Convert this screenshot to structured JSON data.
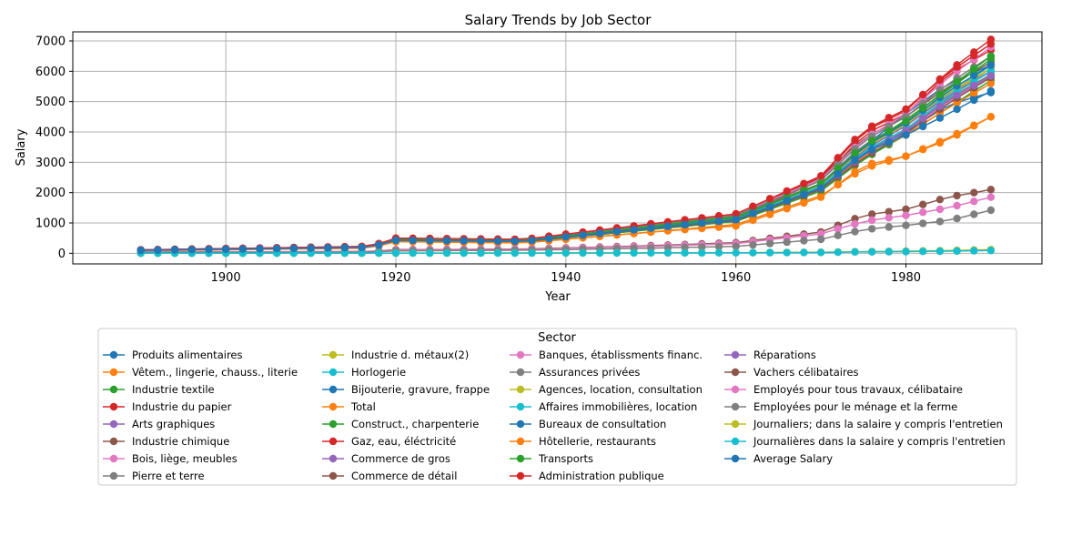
{
  "chart_data": {
    "type": "line",
    "title": "Salary Trends by Job Sector",
    "xlabel": "Year",
    "ylabel": "Salary",
    "xlim": [
      1882,
      1996
    ],
    "ylim": [
      -350,
      7300
    ],
    "xticks": [
      1900,
      1920,
      1940,
      1960,
      1980
    ],
    "yticks": [
      0,
      1000,
      2000,
      3000,
      4000,
      5000,
      6000,
      7000
    ],
    "grid": true,
    "legend": {
      "title": "Sector",
      "placement": "bottom-center",
      "columns": 4
    },
    "x_range": [
      1890,
      1990
    ],
    "series": [
      {
        "name": "Produits alimentaires",
        "color": "#1f77b4",
        "values": {
          "1890": 100,
          "1917": 200,
          "1920": 450,
          "1935": 400,
          "1950": 850,
          "1960": 1150,
          "1970": 2200,
          "1975": 3500,
          "1980": 4600,
          "1985": 5600,
          "1990": 6200
        }
      },
      {
        "name": "Vêtem., lingerie, chauss., literie",
        "color": "#ff7f0e",
        "values": {
          "1890": 90,
          "1917": 180,
          "1920": 400,
          "1935": 350,
          "1950": 700,
          "1960": 950,
          "1970": 1900,
          "1975": 2800,
          "1980": 3200,
          "1985": 3800,
          "1990": 4500
        }
      },
      {
        "name": "Industrie textile",
        "color": "#2ca02c",
        "values": {
          "1890": 95,
          "1917": 190,
          "1920": 420,
          "1935": 380,
          "1950": 780,
          "1960": 1050,
          "1970": 2050,
          "1975": 3100,
          "1980": 3900,
          "1985": 4800,
          "1990": 5700
        }
      },
      {
        "name": "Industrie du papier",
        "color": "#d62728",
        "values": {
          "1890": 100,
          "1917": 210,
          "1920": 460,
          "1935": 420,
          "1950": 900,
          "1960": 1200,
          "1970": 2400,
          "1975": 3900,
          "1980": 4600,
          "1985": 5900,
          "1990": 6700
        }
      },
      {
        "name": "Arts graphiques",
        "color": "#9467bd",
        "values": {
          "1890": 105,
          "1917": 215,
          "1920": 470,
          "1935": 430,
          "1950": 920,
          "1960": 1220,
          "1970": 2300,
          "1975": 3600,
          "1980": 4300,
          "1985": 5300,
          "1990": 6000
        }
      },
      {
        "name": "Industrie chimique",
        "color": "#8c564b",
        "values": {
          "1890": 110,
          "1917": 220,
          "1920": 480,
          "1935": 440,
          "1950": 950,
          "1960": 1250,
          "1970": 2500,
          "1975": 3800,
          "1980": 4500,
          "1985": 5500,
          "1990": 6300
        }
      },
      {
        "name": "Bois, liège, meubles",
        "color": "#e377c2",
        "values": {
          "1890": 95,
          "1917": 195,
          "1920": 430,
          "1935": 390,
          "1950": 820,
          "1960": 1100,
          "1970": 2150,
          "1975": 3250,
          "1980": 4000,
          "1985": 5000,
          "1990": 5800
        }
      },
      {
        "name": "Pierre et terre",
        "color": "#7f7f7f",
        "values": {
          "1890": 98,
          "1917": 200,
          "1920": 440,
          "1935": 400,
          "1950": 840,
          "1960": 1120,
          "1970": 2200,
          "1975": 3300,
          "1980": 4100,
          "1985": 5100,
          "1990": 5900
        }
      },
      {
        "name": "Industrie d. métaux(2)",
        "color": "#bcbd22",
        "values": {
          "1890": 100,
          "1917": 205,
          "1920": 450,
          "1935": 410,
          "1950": 860,
          "1960": 1150,
          "1970": 2250,
          "1975": 3400,
          "1980": 4200,
          "1985": 5200,
          "1990": 6100
        }
      },
      {
        "name": "Horlogerie",
        "color": "#17becf",
        "values": {
          "1890": 102,
          "1917": 210,
          "1920": 455,
          "1935": 415,
          "1950": 870,
          "1960": 1160,
          "1970": 2280,
          "1975": 3450,
          "1980": 4250,
          "1985": 5250,
          "1990": 6200
        }
      },
      {
        "name": "Bijouterie, gravure, frappe",
        "color": "#1f77b4",
        "values": {
          "1890": 100,
          "1917": 200,
          "1920": 445,
          "1935": 405,
          "1950": 850,
          "1960": 1130,
          "1970": 2200,
          "1975": 3300,
          "1980": 4000,
          "1985": 4900,
          "1990": 5300
        }
      },
      {
        "name": "Total",
        "color": "#ff7f0e",
        "values": {
          "1890": 98,
          "1917": 195,
          "1920": 435,
          "1935": 395,
          "1950": 820,
          "1960": 1100,
          "1970": 2150,
          "1975": 3200,
          "1980": 3900,
          "1985": 4800,
          "1990": 5600
        }
      },
      {
        "name": "Construct., charpenterie",
        "color": "#2ca02c",
        "values": {
          "1890": 105,
          "1917": 215,
          "1920": 465,
          "1935": 425,
          "1950": 900,
          "1960": 1200,
          "1970": 2300,
          "1975": 3500,
          "1980": 4400,
          "1985": 5400,
          "1990": 6400
        }
      },
      {
        "name": "Gaz, eau, éléctricité",
        "color": "#d62728",
        "values": {
          "1890": 110,
          "1917": 225,
          "1920": 490,
          "1935": 450,
          "1950": 960,
          "1960": 1280,
          "1970": 2500,
          "1975": 4000,
          "1980": 4700,
          "1985": 6000,
          "1990": 7050
        }
      },
      {
        "name": "Commerce de gros",
        "color": "#9467bd",
        "values": {
          "1890": 100,
          "1917": 205,
          "1920": 450,
          "1935": 410,
          "1950": 880,
          "1960": 1170,
          "1970": 2250,
          "1975": 3400,
          "1980": 4200,
          "1985": 5200,
          "1990": 6000
        }
      },
      {
        "name": "Commerce de détail",
        "color": "#8c564b",
        "values": {
          "1890": 95,
          "1917": 190,
          "1920": 420,
          "1935": 385,
          "1950": 810,
          "1960": 1080,
          "1970": 2100,
          "1975": 3150,
          "1980": 3950,
          "1985": 4950,
          "1990": 5800
        }
      },
      {
        "name": "Banques, établissments financ.",
        "color": "#e377c2",
        "values": {
          "1890": 110,
          "1917": 225,
          "1920": 490,
          "1935": 450,
          "1950": 960,
          "1960": 1280,
          "1970": 2450,
          "1975": 3750,
          "1980": 4600,
          "1985": 5800,
          "1990": 6800
        }
      },
      {
        "name": "Assurances privées",
        "color": "#7f7f7f",
        "values": {
          "1890": 108,
          "1917": 220,
          "1920": 480,
          "1935": 440,
          "1950": 940,
          "1960": 1250,
          "1970": 2400,
          "1975": 3700,
          "1980": 4500,
          "1985": 5600,
          "1990": 6500
        }
      },
      {
        "name": "Agences, location, consultation",
        "color": "#bcbd22",
        "values": {
          "1890": 100,
          "1917": 205,
          "1920": 450,
          "1935": 410,
          "1950": 870,
          "1960": 1160,
          "1970": 2250,
          "1975": 3450,
          "1980": 4250,
          "1985": 5300,
          "1990": 6100
        }
      },
      {
        "name": "Affaires immobilières, location",
        "color": "#17becf",
        "values": {
          "1890": 98,
          "1917": 200,
          "1920": 440,
          "1935": 400,
          "1950": 850,
          "1960": 1130,
          "1970": 2200,
          "1975": 3350,
          "1980": 4100,
          "1985": 5150,
          "1990": 6000
        }
      },
      {
        "name": "Bureaux de consultation",
        "color": "#1f77b4",
        "values": {
          "1890": 102,
          "1917": 210,
          "1920": 455,
          "1935": 415,
          "1950": 880,
          "1960": 1170,
          "1970": 2280,
          "1975": 3500,
          "1980": 4300,
          "1985": 5350,
          "1990": 6200
        }
      },
      {
        "name": "Hôtellerie, restaurants",
        "color": "#ff7f0e",
        "values": {
          "1890": 85,
          "1917": 170,
          "1920": 380,
          "1935": 340,
          "1950": 700,
          "1960": 900,
          "1970": 1850,
          "1975": 2900,
          "1980": 3200,
          "1985": 3750,
          "1990": 4500
        }
      },
      {
        "name": "Transports",
        "color": "#2ca02c",
        "values": {
          "1890": 102,
          "1917": 210,
          "1920": 455,
          "1935": 415,
          "1950": 880,
          "1960": 1180,
          "1970": 2300,
          "1975": 3550,
          "1980": 4350,
          "1985": 5450,
          "1990": 6500
        }
      },
      {
        "name": "Administration publique",
        "color": "#d62728",
        "values": {
          "1890": 112,
          "1917": 230,
          "1920": 500,
          "1935": 460,
          "1950": 970,
          "1960": 1300,
          "1970": 2550,
          "1975": 4050,
          "1980": 4750,
          "1985": 5950,
          "1990": 6900
        }
      },
      {
        "name": "Réparations",
        "color": "#9467bd",
        "values": {
          "1890": 96,
          "1917": 195,
          "1920": 430,
          "1935": 395,
          "1950": 830,
          "1960": 1110,
          "1970": 2150,
          "1975": 3250,
          "1980": 4050,
          "1985": 5050,
          "1990": 5850
        }
      },
      {
        "name": "Vachers célibataires",
        "color": "#8c564b",
        "values": {
          "1890": 40,
          "1917": 60,
          "1920": 120,
          "1935": 140,
          "1950": 250,
          "1960": 350,
          "1970": 700,
          "1975": 1250,
          "1980": 1450,
          "1985": 1850,
          "1990": 2100
        }
      },
      {
        "name": "Employés pour tous travaux, célibataire",
        "color": "#e377c2",
        "values": {
          "1890": 35,
          "1917": 55,
          "1920": 110,
          "1935": 130,
          "1950": 230,
          "1960": 320,
          "1970": 640,
          "1975": 1050,
          "1980": 1250,
          "1985": 1500,
          "1990": 1850
        }
      },
      {
        "name": "Employées pour le ménage et la ferme",
        "color": "#7f7f7f",
        "values": {
          "1890": 25,
          "1917": 40,
          "1920": 80,
          "1935": 100,
          "1950": 170,
          "1960": 230,
          "1970": 460,
          "1975": 780,
          "1980": 920,
          "1985": 1080,
          "1990": 1420
        }
      },
      {
        "name": "Journaliers; dans la salaire y compris l'entretien",
        "color": "#bcbd22",
        "values": {
          "1890": 2,
          "1917": 3,
          "1920": 8,
          "1935": 9,
          "1950": 15,
          "1960": 20,
          "1970": 35,
          "1975": 55,
          "1980": 70,
          "1985": 90,
          "1990": 120
        }
      },
      {
        "name": "Journalières dans la salaire y compris l'entretien",
        "color": "#17becf",
        "values": {
          "1890": 1,
          "1917": 2,
          "1920": 6,
          "1935": 7,
          "1950": 12,
          "1960": 16,
          "1970": 28,
          "1975": 45,
          "1980": 55,
          "1985": 70,
          "1990": 90
        }
      },
      {
        "name": "Average Salary",
        "color": "#1f77b4",
        "values": {
          "1890": 96,
          "1917": 195,
          "1920": 430,
          "1935": 395,
          "1950": 830,
          "1960": 1110,
          "1970": 2150,
          "1975": 3300,
          "1980": 3900,
          "1985": 4600,
          "1990": 5350
        }
      }
    ]
  }
}
